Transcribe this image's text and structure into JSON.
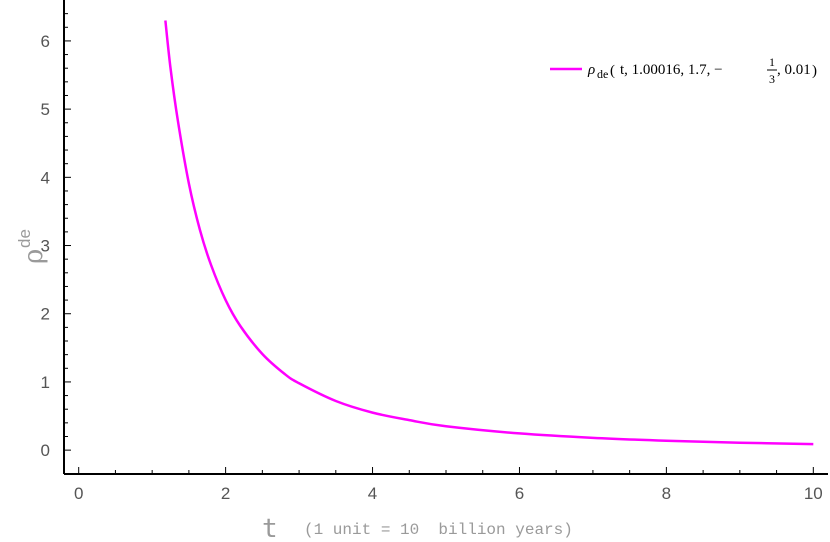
{
  "chart_data": {
    "type": "line",
    "xlabel": {
      "symbol": "t",
      "note": "(1 unit = 10  billion years)"
    },
    "ylabel": {
      "symbol": "ρ",
      "superscript": "de"
    },
    "xlim": [
      -0.2,
      10.2
    ],
    "ylim": [
      -0.35,
      6.6
    ],
    "xticks": [
      0,
      2,
      4,
      6,
      8,
      10
    ],
    "xtick_labels": [
      "0",
      "2",
      "4",
      "6",
      "8",
      "10"
    ],
    "yticks": [
      0,
      1,
      2,
      3,
      4,
      5,
      6
    ],
    "ytick_labels": [
      "0",
      "1",
      "2",
      "3",
      "4",
      "5",
      "6"
    ],
    "grid": false,
    "legend_position": "top-right",
    "series": [
      {
        "name": "ρde(t, 1.00016, 1.7, −1/3, 0.01)",
        "color": "#ff00ff",
        "x": [
          1.18,
          1.25,
          1.35,
          1.5,
          1.65,
          1.8,
          2.0,
          2.2,
          2.5,
          2.8,
          3.0,
          3.5,
          4.0,
          4.5,
          5.0,
          6.0,
          7.0,
          8.0,
          9.0,
          10.0
        ],
        "y": [
          6.3,
          5.6,
          4.83,
          3.91,
          3.23,
          2.72,
          2.2,
          1.82,
          1.41,
          1.12,
          0.98,
          0.72,
          0.55,
          0.44,
          0.35,
          0.245,
          0.18,
          0.138,
          0.109,
          0.088
        ]
      }
    ]
  },
  "legend": {
    "label": {
      "rho": "ρ",
      "sub": "de",
      "args_before": "t, 1.00016, 1.7, −",
      "frac_num": "1",
      "frac_den": "3",
      "args_after": ", 0.01"
    }
  }
}
